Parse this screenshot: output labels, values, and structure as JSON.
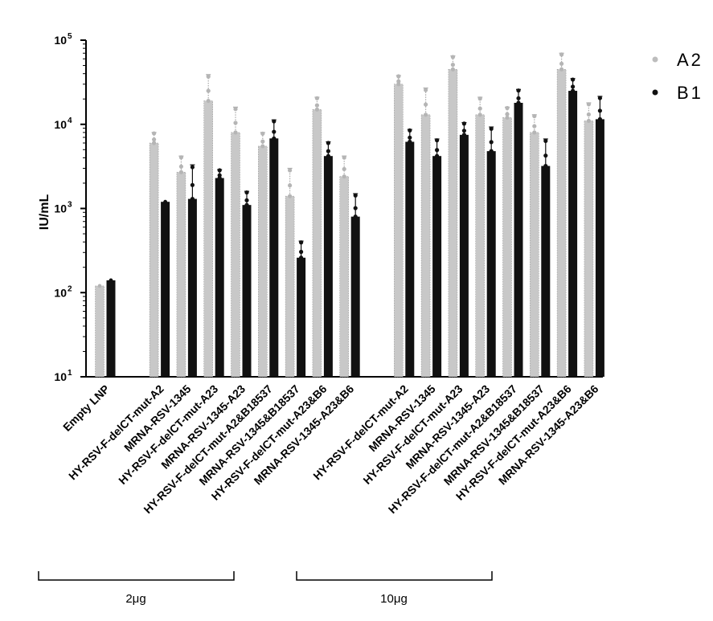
{
  "chart_data": {
    "type": "bar",
    "ylabel": "IU/mL",
    "yscale": "log",
    "ylim": [
      10,
      100000
    ],
    "ytick_base": "10",
    "ytick_exponents": [
      "1",
      "2",
      "3",
      "4",
      "5"
    ],
    "categories": [
      "Empty LNP",
      "HY-RSV-F-delCT-mut-A2",
      "MRNA-RSV-1345",
      "HY-RSV-F-delCT-mut-A23",
      "MRNA-RSV-1345-A23",
      "HY-RSV-F-delCT-mut-A2&B18537",
      "MRNA-RSV-1345&B18537",
      "HY-RSV-F-delCT-mut-A23&B6",
      "MRNA-RSV-1345-A23&B6",
      "HY-RSV-F-delCT-mut-A2",
      "MRNA-RSV-1345",
      "HY-RSV-F-delCT-mut-A23",
      "MRNA-RSV-1345-A23",
      "HY-RSV-F-delCT-mut-A2&B18537",
      "MRNA-RSV-1345&B18537",
      "HY-RSV-F-delCT-mut-A23&B6",
      "MRNA-RSV-1345-A23&B6"
    ],
    "series": [
      {
        "name": "A2",
        "color": "#bdbdbd",
        "values": [
          120,
          6000,
          2700,
          19000,
          8000,
          5500,
          1400,
          15000,
          2400,
          30000,
          13000,
          45000,
          13000,
          12000,
          8000,
          45000,
          11000
        ],
        "errors": [
          0,
          2000,
          1500,
          20000,
          8000,
          2500,
          1600,
          6000,
          1800,
          8000,
          14000,
          20000,
          8000,
          4000,
          5000,
          25000,
          7000
        ]
      },
      {
        "name": "B1",
        "color": "#111111",
        "values": [
          140,
          1200,
          1300,
          2300,
          1100,
          6800,
          260,
          4200,
          800,
          6200,
          4200,
          7500,
          4800,
          18000,
          3200,
          25000,
          11500
        ],
        "errors": [
          0,
          0,
          2000,
          600,
          500,
          4500,
          150,
          2000,
          700,
          2500,
          2500,
          3000,
          4500,
          8000,
          3500,
          10000,
          10000
        ]
      }
    ],
    "groups": [
      {
        "label": "2μg"
      },
      {
        "label": "10μg"
      }
    ],
    "legend_position": "top-right",
    "grid": false
  }
}
